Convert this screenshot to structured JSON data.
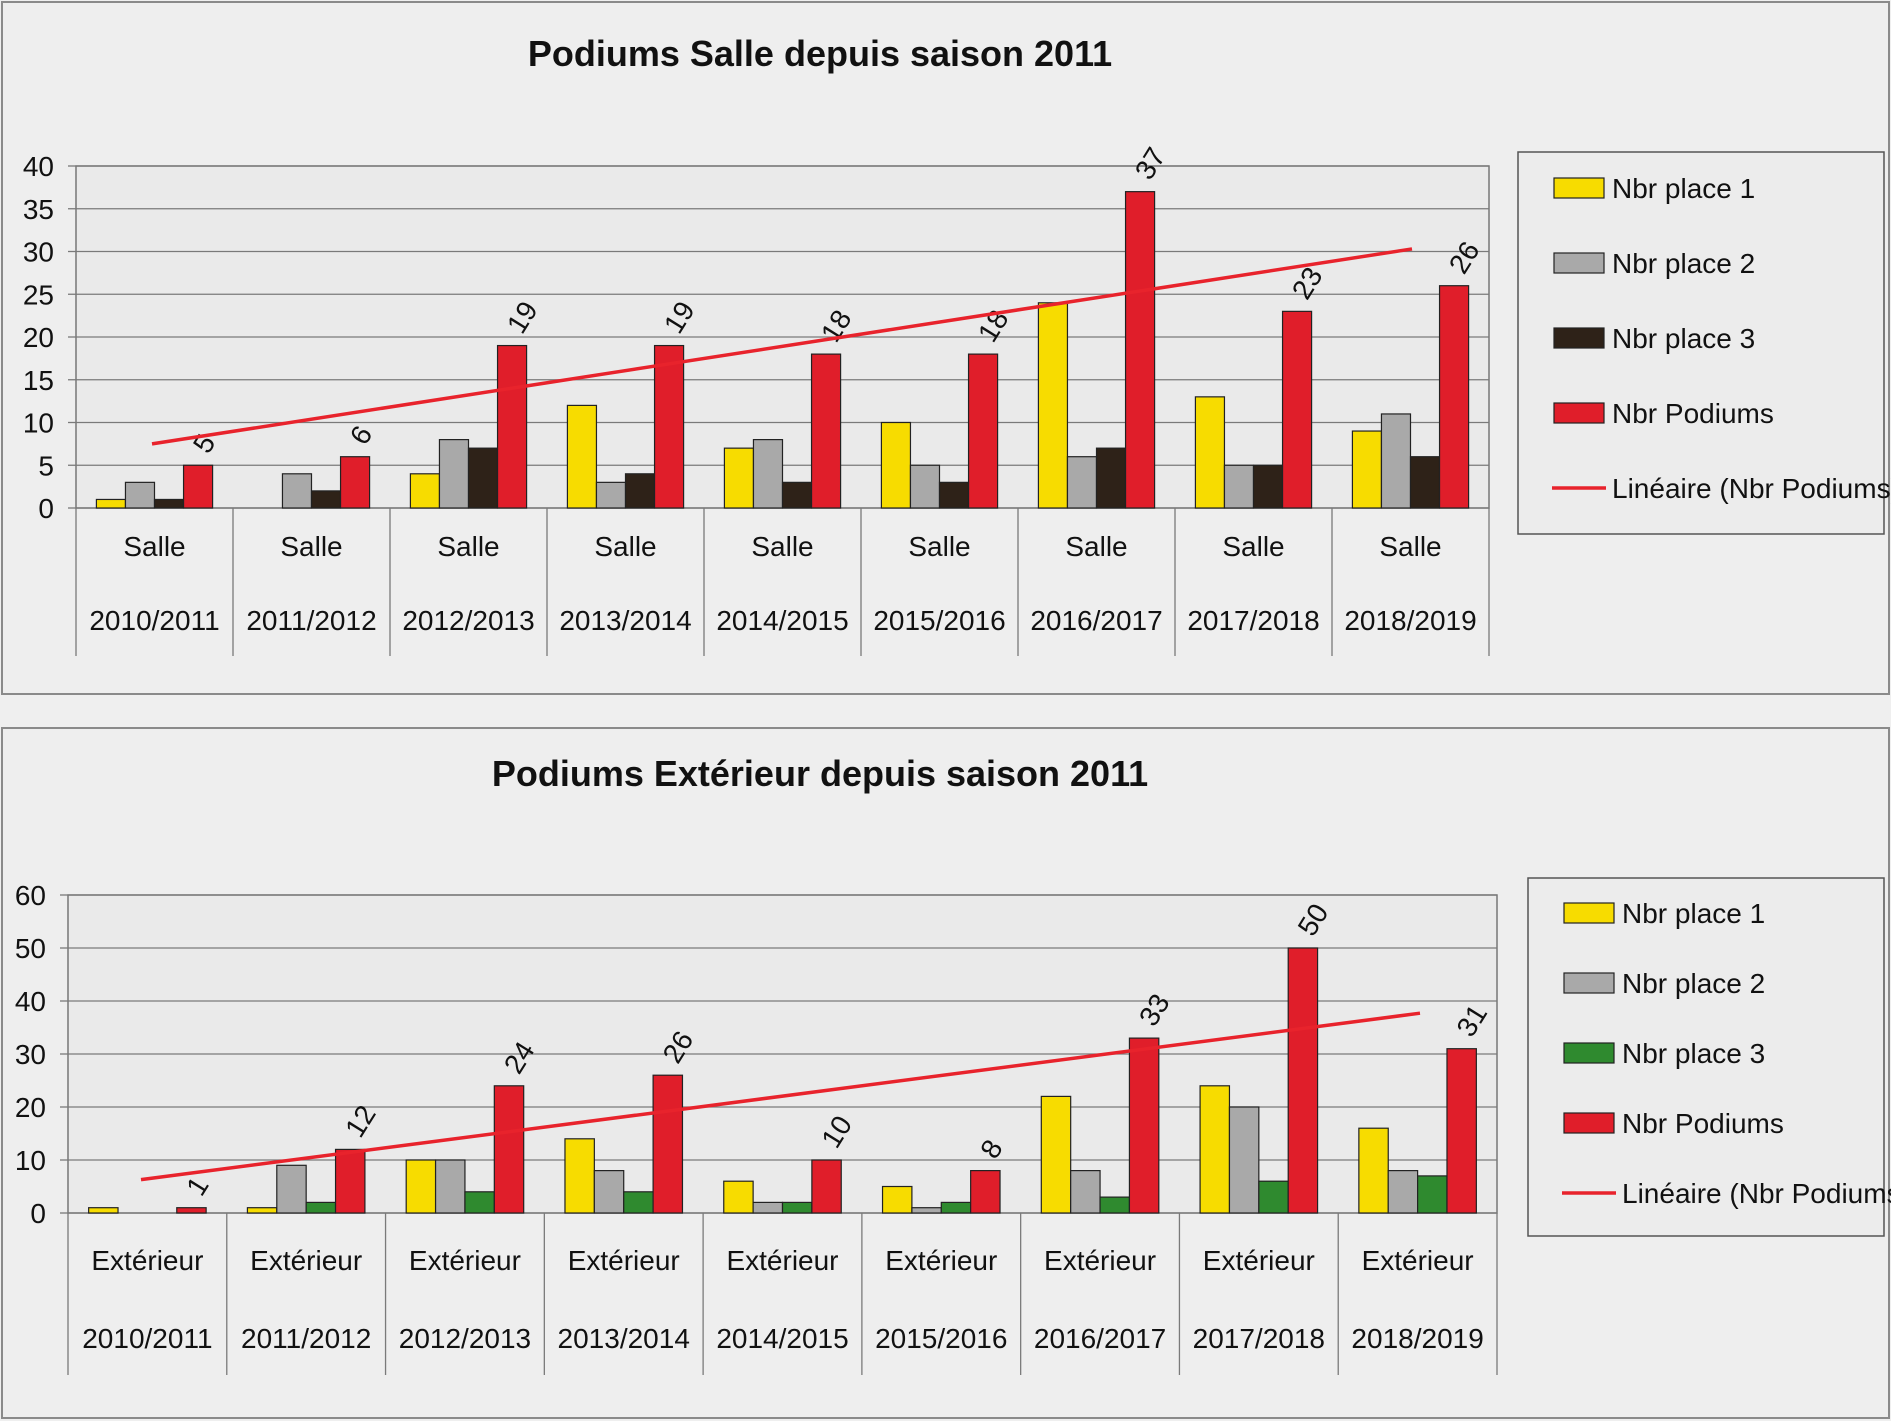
{
  "chart_data": [
    {
      "type": "bar",
      "title": "Podiums Salle depuis saison 2011",
      "ylim": [
        0,
        40
      ],
      "yticks": [
        0,
        5,
        10,
        15,
        20,
        25,
        30,
        35,
        40
      ],
      "grid": true,
      "legend_position": "right",
      "categories_top": [
        "Salle",
        "Salle",
        "Salle",
        "Salle",
        "Salle",
        "Salle",
        "Salle",
        "Salle",
        "Salle"
      ],
      "categories": [
        "2010/2011",
        "2011/2012",
        "2012/2013",
        "2013/2014",
        "2014/2015",
        "2015/2016",
        "2016/2017",
        "2017/2018",
        "2018/2019"
      ],
      "series": [
        {
          "name": "Nbr place 1",
          "color": "#f7dc00",
          "values": [
            1,
            0,
            4,
            12,
            7,
            10,
            24,
            13,
            9
          ]
        },
        {
          "name": "Nbr place 2",
          "color": "#a9a9a9",
          "values": [
            3,
            4,
            8,
            3,
            8,
            5,
            6,
            5,
            11
          ]
        },
        {
          "name": "Nbr place 3",
          "color": "#2e2218",
          "values": [
            1,
            2,
            7,
            4,
            3,
            3,
            7,
            5,
            6
          ]
        },
        {
          "name": "Nbr Podiums",
          "color": "#e01e2a",
          "values": [
            5,
            6,
            19,
            19,
            18,
            18,
            37,
            23,
            26
          ],
          "data_labels": true
        }
      ],
      "trendline": {
        "name": "Linéaire (Nbr Podiums)",
        "color": "#e8232c",
        "start": 7.5,
        "end": 30.3
      }
    },
    {
      "type": "bar",
      "title": "Podiums Extérieur depuis saison 2011",
      "ylim": [
        0,
        60
      ],
      "yticks": [
        0,
        10,
        20,
        30,
        40,
        50,
        60
      ],
      "grid": true,
      "legend_position": "right",
      "categories_top": [
        "Extérieur",
        "Extérieur",
        "Extérieur",
        "Extérieur",
        "Extérieur",
        "Extérieur",
        "Extérieur",
        "Extérieur",
        "Extérieur"
      ],
      "categories": [
        "2010/2011",
        "2011/2012",
        "2012/2013",
        "2013/2014",
        "2014/2015",
        "2015/2016",
        "2016/2017",
        "2017/2018",
        "2018/2019"
      ],
      "series": [
        {
          "name": "Nbr place 1",
          "color": "#f7dc00",
          "values": [
            1,
            1,
            10,
            14,
            6,
            5,
            22,
            24,
            16
          ]
        },
        {
          "name": "Nbr place 2",
          "color": "#a9a9a9",
          "values": [
            0,
            9,
            10,
            8,
            2,
            1,
            8,
            20,
            8
          ]
        },
        {
          "name": "Nbr place 3",
          "color": "#2f8a2f",
          "values": [
            0,
            2,
            4,
            4,
            2,
            2,
            3,
            6,
            7
          ]
        },
        {
          "name": "Nbr Podiums",
          "color": "#e01e2a",
          "values": [
            1,
            12,
            24,
            26,
            10,
            8,
            33,
            50,
            31
          ],
          "data_labels": true
        }
      ],
      "trendline": {
        "name": "Linéaire (Nbr Podiums)",
        "color": "#e8232c",
        "start": 6.3,
        "end": 37.7
      }
    }
  ]
}
